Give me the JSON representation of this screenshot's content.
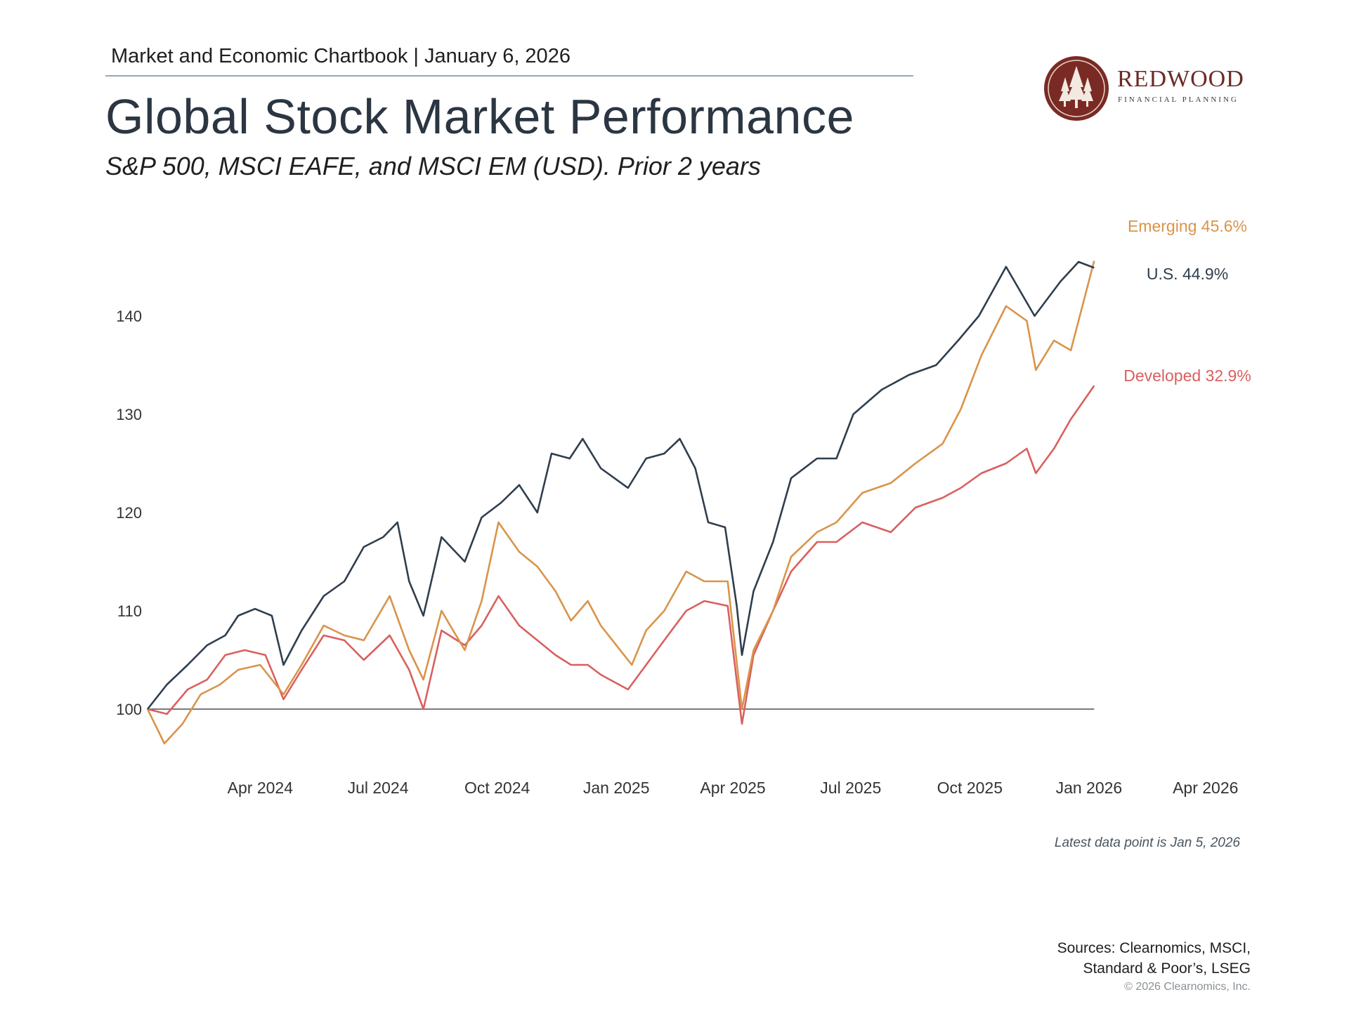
{
  "header": {
    "chartbook": "Market and Economic Chartbook | January 6, 2026",
    "title": "Global Stock Market Performance",
    "subtitle": "S&P 500, MSCI EAFE, and MSCI EM (USD). Prior 2 years"
  },
  "logo": {
    "name": "REDWOOD",
    "tagline": "FINANCIAL PLANNING",
    "color": "#7a2a25"
  },
  "chart_data": {
    "type": "line",
    "x_axis_ticks": [
      "Apr 2024",
      "Jul 2024",
      "Oct 2024",
      "Jan 2025",
      "Apr 2025",
      "Jul 2025",
      "Oct 2025",
      "Jan 2026",
      "Apr 2026"
    ],
    "x_axis_tick_dates": [
      "2024-04-01",
      "2024-07-01",
      "2024-10-01",
      "2025-01-01",
      "2025-04-01",
      "2025-07-01",
      "2025-10-01",
      "2026-01-01",
      "2026-04-01"
    ],
    "y_axis_ticks": [
      100,
      110,
      120,
      130,
      140
    ],
    "ylim": [
      95,
      150
    ],
    "xlim": [
      "2024-01-05",
      "2026-04-25"
    ],
    "baseline": 100,
    "grid": false,
    "series": [
      {
        "name": "U.S.",
        "label": "U.S. 44.9%",
        "color": "#2f3e4d",
        "points": [
          [
            "2024-01-05",
            100
          ],
          [
            "2024-01-20",
            102.5
          ],
          [
            "2024-02-05",
            104.5
          ],
          [
            "2024-02-20",
            106.5
          ],
          [
            "2024-03-05",
            107.5
          ],
          [
            "2024-03-15",
            109.5
          ],
          [
            "2024-03-28",
            110.2
          ],
          [
            "2024-04-10",
            109.5
          ],
          [
            "2024-04-19",
            104.5
          ],
          [
            "2024-05-03",
            108
          ],
          [
            "2024-05-20",
            111.5
          ],
          [
            "2024-06-05",
            113
          ],
          [
            "2024-06-20",
            116.5
          ],
          [
            "2024-07-05",
            117.5
          ],
          [
            "2024-07-16",
            119
          ],
          [
            "2024-07-25",
            113
          ],
          [
            "2024-08-05",
            109.5
          ],
          [
            "2024-08-19",
            117.5
          ],
          [
            "2024-09-06",
            115
          ],
          [
            "2024-09-19",
            119.5
          ],
          [
            "2024-10-04",
            121
          ],
          [
            "2024-10-18",
            122.8
          ],
          [
            "2024-11-01",
            120
          ],
          [
            "2024-11-12",
            126
          ],
          [
            "2024-11-26",
            125.5
          ],
          [
            "2024-12-06",
            127.5
          ],
          [
            "2024-12-20",
            124.5
          ],
          [
            "2025-01-10",
            122.5
          ],
          [
            "2025-01-24",
            125.5
          ],
          [
            "2025-02-07",
            126
          ],
          [
            "2025-02-19",
            127.5
          ],
          [
            "2025-03-03",
            124.5
          ],
          [
            "2025-03-13",
            119
          ],
          [
            "2025-03-26",
            118.5
          ],
          [
            "2025-04-04",
            110.5
          ],
          [
            "2025-04-08",
            105.5
          ],
          [
            "2025-04-17",
            112
          ],
          [
            "2025-05-02",
            117
          ],
          [
            "2025-05-16",
            123.5
          ],
          [
            "2025-06-05",
            125.5
          ],
          [
            "2025-06-20",
            125.5
          ],
          [
            "2025-07-03",
            130
          ],
          [
            "2025-07-25",
            132.5
          ],
          [
            "2025-08-15",
            134
          ],
          [
            "2025-09-05",
            135
          ],
          [
            "2025-09-22",
            137.5
          ],
          [
            "2025-10-08",
            140
          ],
          [
            "2025-10-29",
            145
          ],
          [
            "2025-11-20",
            140
          ],
          [
            "2025-12-10",
            143.5
          ],
          [
            "2025-12-24",
            145.5
          ],
          [
            "2026-01-05",
            144.9
          ]
        ]
      },
      {
        "name": "Emerging",
        "label": "Emerging 45.6%",
        "color": "#d9944a",
        "points": [
          [
            "2024-01-05",
            100
          ],
          [
            "2024-01-18",
            96.5
          ],
          [
            "2024-02-01",
            98.5
          ],
          [
            "2024-02-15",
            101.5
          ],
          [
            "2024-03-01",
            102.5
          ],
          [
            "2024-03-15",
            104
          ],
          [
            "2024-04-01",
            104.5
          ],
          [
            "2024-04-19",
            101.5
          ],
          [
            "2024-05-03",
            104.5
          ],
          [
            "2024-05-20",
            108.5
          ],
          [
            "2024-06-05",
            107.5
          ],
          [
            "2024-06-20",
            107
          ],
          [
            "2024-07-10",
            111.5
          ],
          [
            "2024-07-25",
            106
          ],
          [
            "2024-08-05",
            103
          ],
          [
            "2024-08-19",
            110
          ],
          [
            "2024-09-06",
            106
          ],
          [
            "2024-09-19",
            111
          ],
          [
            "2024-10-02",
            119
          ],
          [
            "2024-10-18",
            116
          ],
          [
            "2024-11-01",
            114.5
          ],
          [
            "2024-11-15",
            112
          ],
          [
            "2024-11-27",
            109
          ],
          [
            "2024-12-10",
            111
          ],
          [
            "2024-12-20",
            108.5
          ],
          [
            "2025-01-13",
            104.5
          ],
          [
            "2025-01-24",
            108
          ],
          [
            "2025-02-07",
            110
          ],
          [
            "2025-02-24",
            114
          ],
          [
            "2025-03-10",
            113
          ],
          [
            "2025-03-28",
            113
          ],
          [
            "2025-04-08",
            100
          ],
          [
            "2025-04-17",
            106
          ],
          [
            "2025-05-02",
            110
          ],
          [
            "2025-05-16",
            115.5
          ],
          [
            "2025-06-05",
            118
          ],
          [
            "2025-06-20",
            119
          ],
          [
            "2025-07-10",
            122
          ],
          [
            "2025-08-01",
            123
          ],
          [
            "2025-08-20",
            125
          ],
          [
            "2025-09-10",
            127
          ],
          [
            "2025-09-24",
            130.5
          ],
          [
            "2025-10-10",
            136
          ],
          [
            "2025-10-29",
            141
          ],
          [
            "2025-11-14",
            139.5
          ],
          [
            "2025-11-21",
            134.5
          ],
          [
            "2025-12-05",
            137.5
          ],
          [
            "2025-12-18",
            136.5
          ],
          [
            "2026-01-05",
            145.6
          ]
        ]
      },
      {
        "name": "Developed",
        "label": "Developed 32.9%",
        "color": "#d9605f",
        "points": [
          [
            "2024-01-05",
            100
          ],
          [
            "2024-01-20",
            99.5
          ],
          [
            "2024-02-05",
            102
          ],
          [
            "2024-02-20",
            103
          ],
          [
            "2024-03-05",
            105.5
          ],
          [
            "2024-03-20",
            106
          ],
          [
            "2024-04-05",
            105.5
          ],
          [
            "2024-04-19",
            101
          ],
          [
            "2024-05-03",
            104
          ],
          [
            "2024-05-20",
            107.5
          ],
          [
            "2024-06-05",
            107
          ],
          [
            "2024-06-20",
            105
          ],
          [
            "2024-07-10",
            107.5
          ],
          [
            "2024-07-25",
            104
          ],
          [
            "2024-08-05",
            100
          ],
          [
            "2024-08-19",
            108
          ],
          [
            "2024-09-06",
            106.5
          ],
          [
            "2024-09-19",
            108.5
          ],
          [
            "2024-10-02",
            111.5
          ],
          [
            "2024-10-18",
            108.5
          ],
          [
            "2024-11-01",
            107
          ],
          [
            "2024-11-15",
            105.5
          ],
          [
            "2024-11-27",
            104.5
          ],
          [
            "2024-12-10",
            104.5
          ],
          [
            "2024-12-20",
            103.5
          ],
          [
            "2025-01-10",
            102
          ],
          [
            "2025-01-24",
            104.5
          ],
          [
            "2025-02-07",
            107
          ],
          [
            "2025-02-24",
            110
          ],
          [
            "2025-03-10",
            111
          ],
          [
            "2025-03-28",
            110.5
          ],
          [
            "2025-04-08",
            98.5
          ],
          [
            "2025-04-17",
            105.5
          ],
          [
            "2025-05-02",
            110
          ],
          [
            "2025-05-16",
            114
          ],
          [
            "2025-06-05",
            117
          ],
          [
            "2025-06-20",
            117
          ],
          [
            "2025-07-10",
            119
          ],
          [
            "2025-08-01",
            118
          ],
          [
            "2025-08-20",
            120.5
          ],
          [
            "2025-09-10",
            121.5
          ],
          [
            "2025-09-24",
            122.5
          ],
          [
            "2025-10-10",
            124
          ],
          [
            "2025-10-29",
            125
          ],
          [
            "2025-11-14",
            126.5
          ],
          [
            "2025-11-21",
            124
          ],
          [
            "2025-12-05",
            126.5
          ],
          [
            "2025-12-18",
            129.5
          ],
          [
            "2026-01-05",
            132.9
          ]
        ]
      }
    ]
  },
  "footer": {
    "note": "Latest data point is Jan 5, 2026",
    "sources_line1": "Sources: Clearnomics, MSCI,",
    "sources_line2": "Standard & Poor’s, LSEG",
    "copyright": "© 2026 Clearnomics, Inc."
  }
}
